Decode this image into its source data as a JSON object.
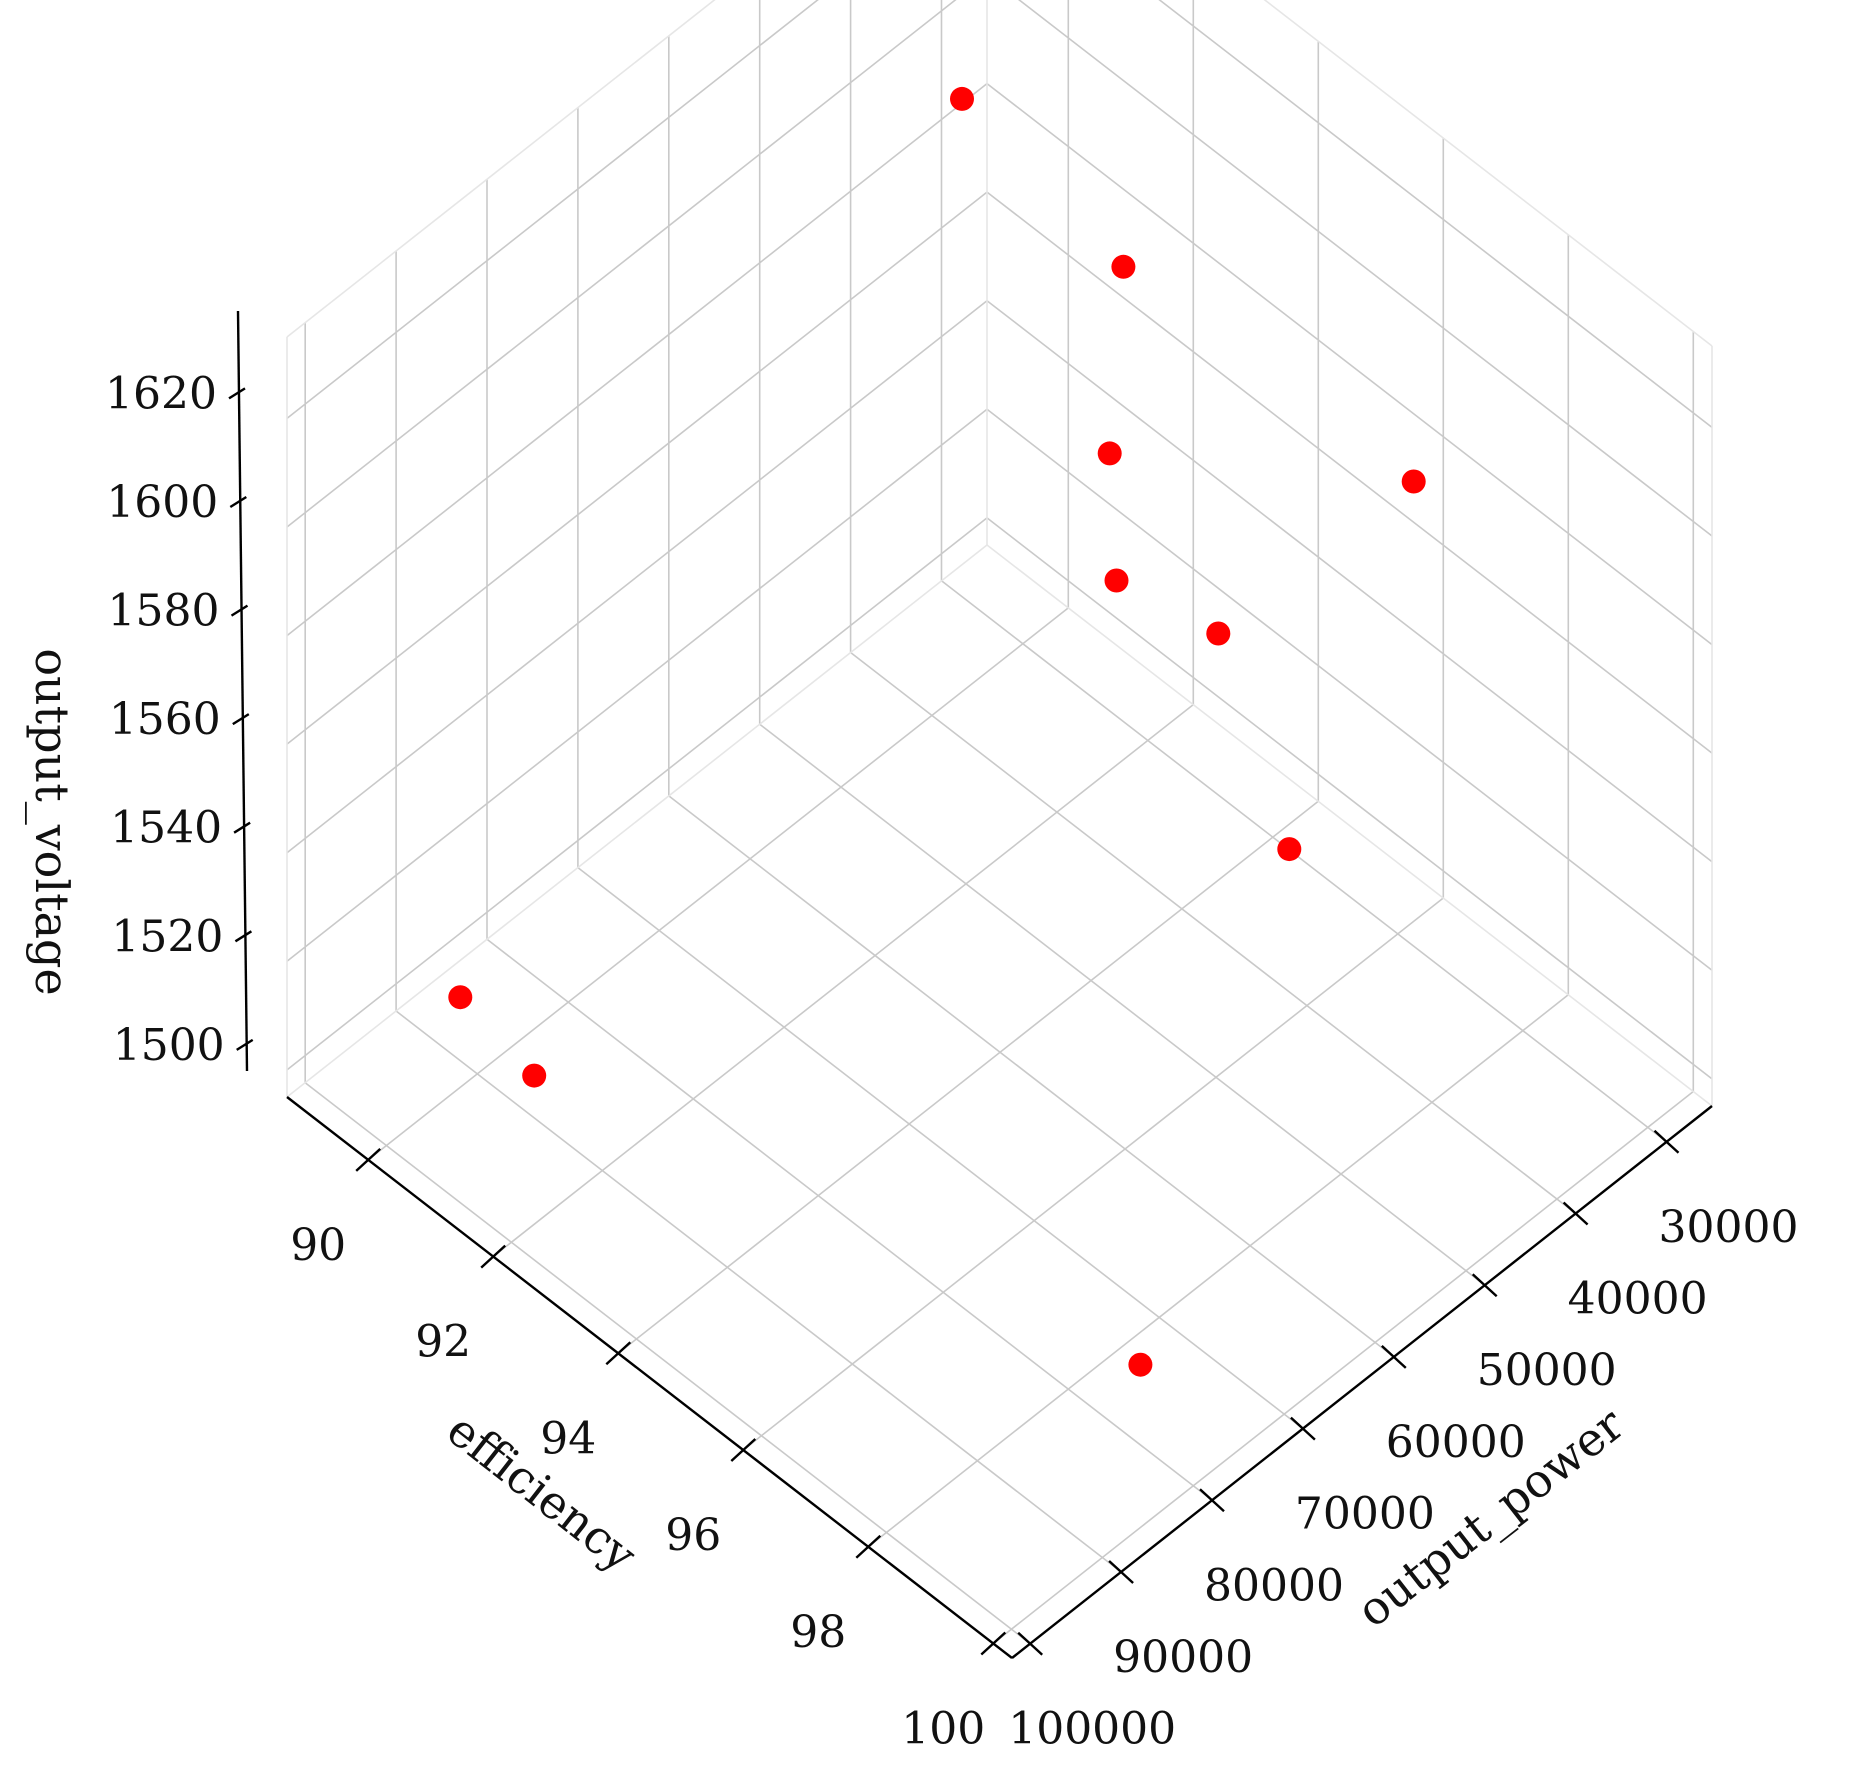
{
  "chart_data": {
    "type": "scatter",
    "title": "",
    "xlabel": "efficiency",
    "ylabel": "output_power",
    "zlabel": "output_voltage",
    "xlim": [
      88.7,
      100.3
    ],
    "ylim": [
      25000,
      102000
    ],
    "zlim": [
      1495,
      1635
    ],
    "x_ticks": [
      {
        "value": 90,
        "label": "90"
      },
      {
        "value": 92,
        "label": "92"
      },
      {
        "value": 94,
        "label": "94"
      },
      {
        "value": 96,
        "label": "96"
      },
      {
        "value": 98,
        "label": "98"
      },
      {
        "value": 100,
        "label": "100"
      }
    ],
    "y_ticks": [
      {
        "value": 30000,
        "label": "30000"
      },
      {
        "value": 40000,
        "label": "40000"
      },
      {
        "value": 50000,
        "label": "50000"
      },
      {
        "value": 60000,
        "label": "60000"
      },
      {
        "value": 70000,
        "label": "70000"
      },
      {
        "value": 80000,
        "label": "80000"
      },
      {
        "value": 90000,
        "label": "90000"
      },
      {
        "value": 100000,
        "label": "100000"
      }
    ],
    "z_ticks": [
      {
        "value": 1500,
        "label": "1500"
      },
      {
        "value": 1520,
        "label": "1520"
      },
      {
        "value": 1540,
        "label": "1540"
      },
      {
        "value": 1560,
        "label": "1560"
      },
      {
        "value": 1580,
        "label": "1580"
      },
      {
        "value": 1600,
        "label": "1600"
      },
      {
        "value": 1620,
        "label": "1620"
      }
    ],
    "grid": true,
    "marker_color": "#ff0000",
    "points": [
      {
        "efficiency": 91.9,
        "output_power": 32000,
        "output_voltage": 1584
      },
      {
        "efficiency": 92.7,
        "output_power": 39000,
        "output_voltage": 1566
      },
      {
        "efficiency": 89.8,
        "output_power": 90500,
        "output_voltage": 1508
      },
      {
        "efficiency": 91.2,
        "output_power": 92000,
        "output_voltage": 1508
      },
      {
        "efficiency": 98.5,
        "output_power": 75500,
        "output_voltage": 1498
      },
      {
        "efficiency": 98.0,
        "output_power": 42000,
        "output_voltage": 1612
      },
      {
        "efficiency": 97.2,
        "output_power": 58000,
        "output_voltage": 1598
      },
      {
        "efficiency": 94.7,
        "output_power": 33000,
        "output_voltage": 1503
      },
      {
        "efficiency": 89.1,
        "output_power": 30500,
        "output_voltage": 1588
      },
      {
        "efficiency": 91.5,
        "output_power": 30000,
        "output_voltage": 1520
      }
    ]
  }
}
